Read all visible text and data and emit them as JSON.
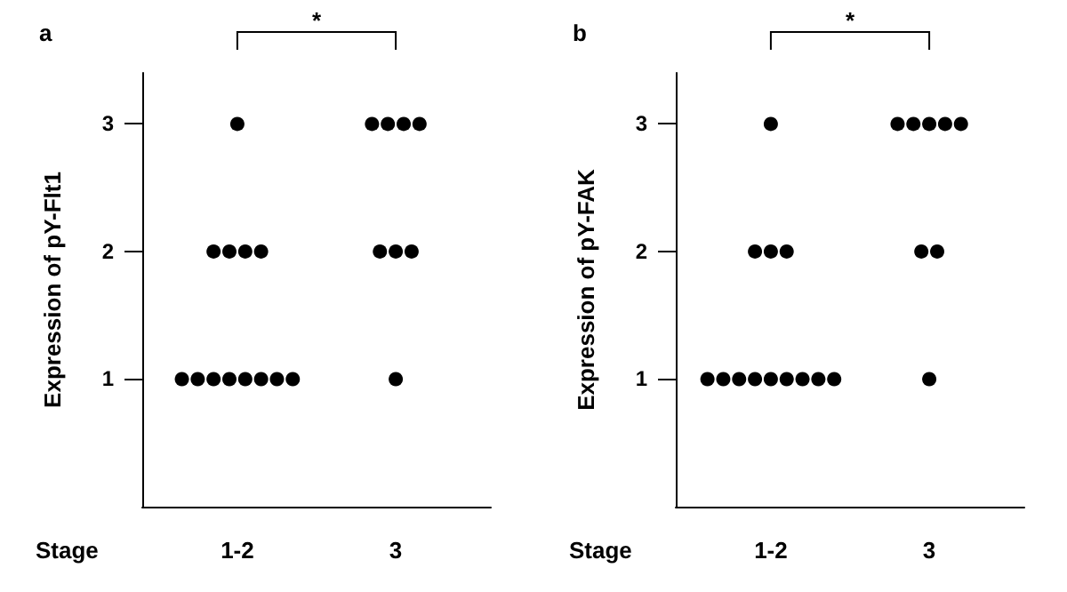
{
  "chart_data": [
    {
      "type": "scatter",
      "title": "a",
      "xlabel": "Stage",
      "ylabel": "Expression of pY-Flt1",
      "categories": [
        "1-2",
        "3"
      ],
      "ylim": [
        0,
        3.4
      ],
      "yticks": [
        1,
        2,
        3
      ],
      "grid": false,
      "marker": "circle",
      "annotations": [
        "*"
      ],
      "series": [
        {
          "color": "#000000",
          "x": [
            "1-2",
            "1-2",
            "1-2",
            "1-2",
            "1-2",
            "1-2",
            "1-2",
            "1-2",
            "1-2",
            "1-2",
            "1-2",
            "1-2",
            "1-2",
            "3",
            "3",
            "3",
            "3",
            "3",
            "3",
            "3",
            "3"
          ],
          "values": [
            3,
            2,
            2,
            2,
            2,
            1,
            1,
            1,
            1,
            1,
            1,
            1,
            1,
            3,
            3,
            3,
            3,
            2,
            2,
            2,
            1
          ]
        }
      ]
    },
    {
      "type": "scatter",
      "title": "b",
      "xlabel": "Stage",
      "ylabel": "Expression of pY-FAK",
      "categories": [
        "1-2",
        "3"
      ],
      "ylim": [
        0,
        3.4
      ],
      "yticks": [
        1,
        2,
        3
      ],
      "grid": false,
      "marker": "circle",
      "annotations": [
        "*"
      ],
      "series": [
        {
          "color": "#000000",
          "x": [
            "1-2",
            "1-2",
            "1-2",
            "1-2",
            "1-2",
            "1-2",
            "1-2",
            "1-2",
            "1-2",
            "1-2",
            "1-2",
            "1-2",
            "1-2",
            "3",
            "3",
            "3",
            "3",
            "3",
            "3",
            "3",
            "3"
          ],
          "values": [
            3,
            2,
            2,
            2,
            1,
            1,
            1,
            1,
            1,
            1,
            1,
            1,
            1,
            3,
            3,
            3,
            3,
            3,
            2,
            2,
            1
          ]
        }
      ]
    }
  ]
}
